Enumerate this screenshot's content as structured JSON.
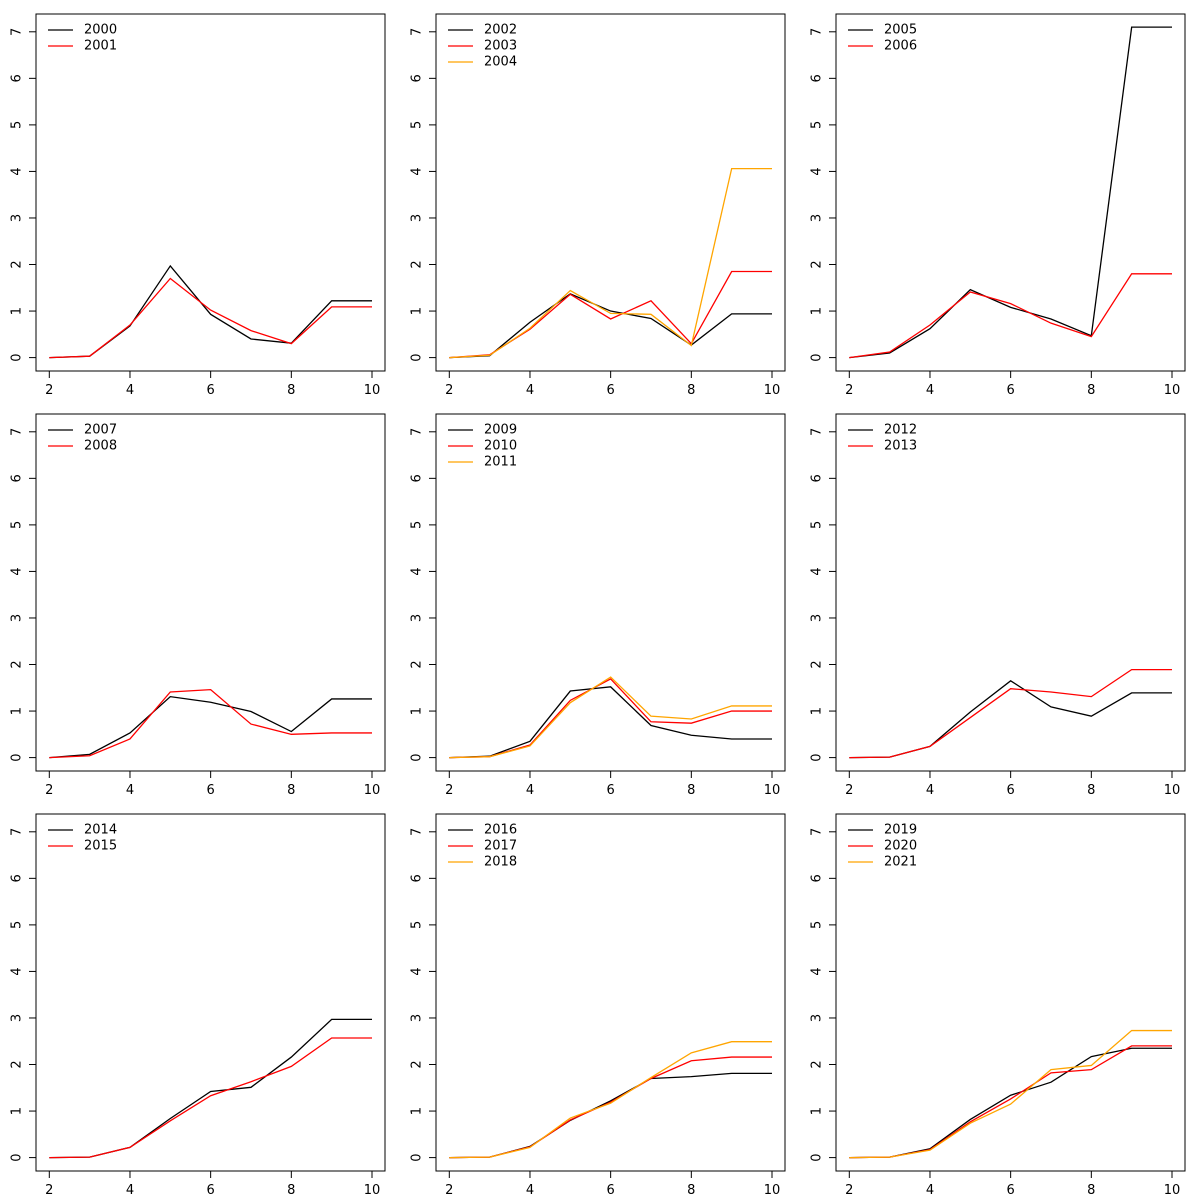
{
  "chart_data": [
    {
      "type": "line",
      "xlim": [
        2,
        10
      ],
      "ylim": [
        0,
        7
      ],
      "xticks": [
        2,
        4,
        6,
        8,
        10
      ],
      "yticks": [
        0,
        1,
        2,
        3,
        4,
        5,
        6,
        7
      ],
      "legend_position": "top-left",
      "x": [
        2,
        3,
        4,
        5,
        6,
        7,
        8,
        9,
        10
      ],
      "series": [
        {
          "name": "2000",
          "color": "#000000",
          "values": [
            0,
            0.03,
            0.68,
            1.97,
            0.93,
            0.4,
            0.31,
            1.22,
            1.22
          ]
        },
        {
          "name": "2001",
          "color": "#ff0000",
          "values": [
            0,
            0.03,
            0.7,
            1.7,
            1.02,
            0.58,
            0.3,
            1.09,
            1.09
          ]
        }
      ]
    },
    {
      "type": "line",
      "xlim": [
        2,
        10
      ],
      "ylim": [
        0,
        7
      ],
      "xticks": [
        2,
        4,
        6,
        8,
        10
      ],
      "yticks": [
        0,
        1,
        2,
        3,
        4,
        5,
        6,
        7
      ],
      "legend_position": "top-left",
      "x": [
        2,
        3,
        4,
        5,
        6,
        7,
        8,
        9,
        10
      ],
      "series": [
        {
          "name": "2002",
          "color": "#000000",
          "values": [
            0,
            0.04,
            0.76,
            1.37,
            1.0,
            0.84,
            0.27,
            0.94,
            0.94
          ]
        },
        {
          "name": "2003",
          "color": "#ff0000",
          "values": [
            0,
            0.06,
            0.61,
            1.36,
            0.83,
            1.22,
            0.3,
            1.85,
            1.85
          ]
        },
        {
          "name": "2004",
          "color": "#ffa500",
          "values": [
            0,
            0.05,
            0.63,
            1.44,
            0.95,
            0.93,
            0.26,
            4.06,
            4.06
          ]
        }
      ]
    },
    {
      "type": "line",
      "xlim": [
        2,
        10
      ],
      "ylim": [
        0,
        7
      ],
      "xticks": [
        2,
        4,
        6,
        8,
        10
      ],
      "yticks": [
        0,
        1,
        2,
        3,
        4,
        5,
        6,
        7
      ],
      "legend_position": "top-left",
      "x": [
        2,
        3,
        4,
        5,
        6,
        7,
        8,
        9,
        10
      ],
      "series": [
        {
          "name": "2005",
          "color": "#000000",
          "values": [
            0,
            0.1,
            0.62,
            1.46,
            1.08,
            0.83,
            0.47,
            7.1,
            7.1
          ]
        },
        {
          "name": "2006",
          "color": "#ff0000",
          "values": [
            0,
            0.12,
            0.7,
            1.41,
            1.16,
            0.74,
            0.45,
            1.8,
            1.8
          ]
        }
      ]
    },
    {
      "type": "line",
      "xlim": [
        2,
        10
      ],
      "ylim": [
        0,
        7
      ],
      "xticks": [
        2,
        4,
        6,
        8,
        10
      ],
      "yticks": [
        0,
        1,
        2,
        3,
        4,
        5,
        6,
        7
      ],
      "legend_position": "top-left",
      "x": [
        2,
        3,
        4,
        5,
        6,
        7,
        8,
        9,
        10
      ],
      "series": [
        {
          "name": "2007",
          "color": "#000000",
          "values": [
            0,
            0.07,
            0.53,
            1.31,
            1.19,
            0.99,
            0.56,
            1.26,
            1.26
          ]
        },
        {
          "name": "2008",
          "color": "#ff0000",
          "values": [
            0,
            0.04,
            0.4,
            1.41,
            1.46,
            0.72,
            0.5,
            0.53,
            0.53
          ]
        }
      ]
    },
    {
      "type": "line",
      "xlim": [
        2,
        10
      ],
      "ylim": [
        0,
        7
      ],
      "xticks": [
        2,
        4,
        6,
        8,
        10
      ],
      "yticks": [
        0,
        1,
        2,
        3,
        4,
        5,
        6,
        7
      ],
      "legend_position": "top-left",
      "x": [
        2,
        3,
        4,
        5,
        6,
        7,
        8,
        9,
        10
      ],
      "series": [
        {
          "name": "2009",
          "color": "#000000",
          "values": [
            0,
            0.03,
            0.35,
            1.43,
            1.52,
            0.69,
            0.48,
            0.4,
            0.4
          ]
        },
        {
          "name": "2010",
          "color": "#ff0000",
          "values": [
            0,
            0.02,
            0.27,
            1.23,
            1.69,
            0.77,
            0.74,
            1.0,
            1.0
          ]
        },
        {
          "name": "2011",
          "color": "#ffa500",
          "values": [
            0,
            0.02,
            0.25,
            1.18,
            1.73,
            0.89,
            0.83,
            1.11,
            1.11
          ]
        }
      ]
    },
    {
      "type": "line",
      "xlim": [
        2,
        10
      ],
      "ylim": [
        0,
        7
      ],
      "xticks": [
        2,
        4,
        6,
        8,
        10
      ],
      "yticks": [
        0,
        1,
        2,
        3,
        4,
        5,
        6,
        7
      ],
      "legend_position": "top-left",
      "x": [
        2,
        3,
        4,
        5,
        6,
        7,
        8,
        9,
        10
      ],
      "series": [
        {
          "name": "2012",
          "color": "#000000",
          "values": [
            0,
            0.01,
            0.24,
            0.98,
            1.65,
            1.09,
            0.89,
            1.39,
            1.39
          ]
        },
        {
          "name": "2013",
          "color": "#ff0000",
          "values": [
            0,
            0.01,
            0.24,
            0.86,
            1.48,
            1.41,
            1.31,
            1.89,
            1.89
          ]
        }
      ]
    },
    {
      "type": "line",
      "xlim": [
        2,
        10
      ],
      "ylim": [
        0,
        7
      ],
      "xticks": [
        2,
        4,
        6,
        8,
        10
      ],
      "yticks": [
        0,
        1,
        2,
        3,
        4,
        5,
        6,
        7
      ],
      "legend_position": "top-left",
      "x": [
        2,
        3,
        4,
        5,
        6,
        7,
        8,
        9,
        10
      ],
      "series": [
        {
          "name": "2014",
          "color": "#000000",
          "values": [
            0,
            0.01,
            0.22,
            0.84,
            1.42,
            1.51,
            2.16,
            2.97,
            2.97
          ]
        },
        {
          "name": "2015",
          "color": "#ff0000",
          "values": [
            0,
            0.01,
            0.22,
            0.79,
            1.33,
            1.63,
            1.96,
            2.57,
            2.57
          ]
        }
      ]
    },
    {
      "type": "line",
      "xlim": [
        2,
        10
      ],
      "ylim": [
        0,
        7
      ],
      "xticks": [
        2,
        4,
        6,
        8,
        10
      ],
      "yticks": [
        0,
        1,
        2,
        3,
        4,
        5,
        6,
        7
      ],
      "legend_position": "top-left",
      "x": [
        2,
        3,
        4,
        5,
        6,
        7,
        8,
        9,
        10
      ],
      "series": [
        {
          "name": "2016",
          "color": "#000000",
          "values": [
            0,
            0.01,
            0.24,
            0.8,
            1.22,
            1.7,
            1.74,
            1.81,
            1.81
          ]
        },
        {
          "name": "2017",
          "color": "#ff0000",
          "values": [
            0,
            0.01,
            0.23,
            0.81,
            1.19,
            1.7,
            2.08,
            2.16,
            2.16
          ]
        },
        {
          "name": "2018",
          "color": "#ffa500",
          "values": [
            0,
            0.01,
            0.22,
            0.85,
            1.17,
            1.72,
            2.25,
            2.49,
            2.49
          ]
        }
      ]
    },
    {
      "type": "line",
      "xlim": [
        2,
        10
      ],
      "ylim": [
        0,
        7
      ],
      "xticks": [
        2,
        4,
        6,
        8,
        10
      ],
      "yticks": [
        0,
        1,
        2,
        3,
        4,
        5,
        6,
        7
      ],
      "legend_position": "top-left",
      "x": [
        2,
        3,
        4,
        5,
        6,
        7,
        8,
        9,
        10
      ],
      "series": [
        {
          "name": "2019",
          "color": "#000000",
          "values": [
            0,
            0.01,
            0.19,
            0.82,
            1.34,
            1.62,
            2.17,
            2.35,
            2.35
          ]
        },
        {
          "name": "2020",
          "color": "#ff0000",
          "values": [
            0,
            0.01,
            0.17,
            0.77,
            1.26,
            1.82,
            1.89,
            2.4,
            2.4
          ]
        },
        {
          "name": "2021",
          "color": "#ffa500",
          "values": [
            0,
            0.01,
            0.16,
            0.74,
            1.15,
            1.89,
            1.98,
            2.73,
            2.73
          ]
        }
      ]
    }
  ]
}
